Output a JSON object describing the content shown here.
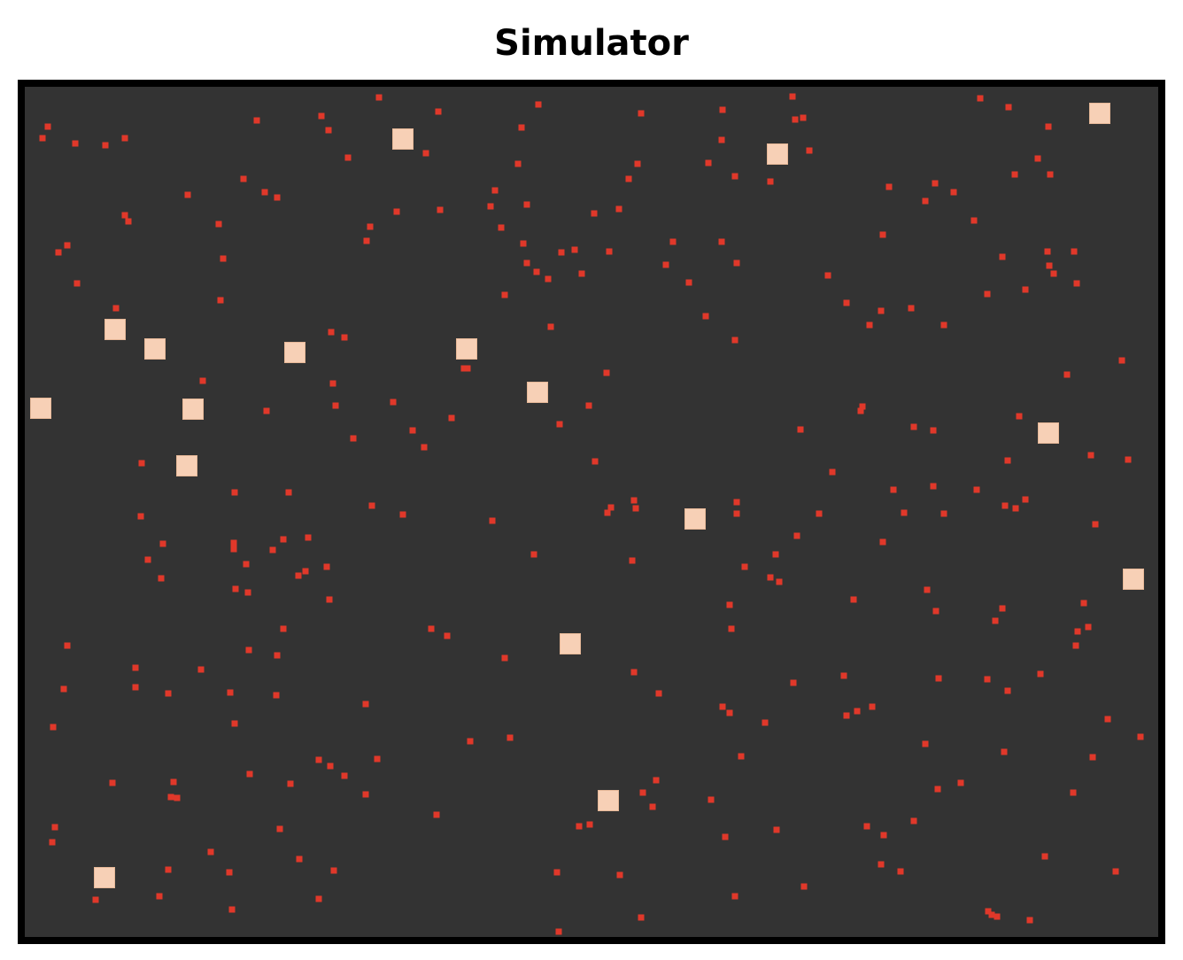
{
  "title": "Simulator"
}
